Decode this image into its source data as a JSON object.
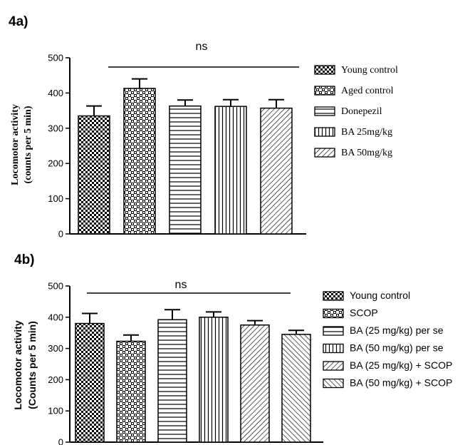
{
  "chart_data": [
    {
      "panel_label": "4a)",
      "type": "bar",
      "categories": [
        "Young control",
        "Aged control",
        "Donepezil",
        "BA 25mg/kg",
        "BA 50mg/kg"
      ],
      "values": [
        335,
        413,
        363,
        362,
        357
      ],
      "errors": [
        28,
        27,
        17,
        19,
        24
      ],
      "patterns": [
        "checker-small",
        "checker-large",
        "horizontal",
        "vertical",
        "diagonal-up"
      ],
      "ylabel_line1": "Locomotor activity",
      "ylabel_line2": "(counts per 5 min)",
      "ylim": [
        0,
        500
      ],
      "yticks": [
        "0",
        "100",
        "200",
        "300",
        "400",
        "500"
      ],
      "significance": "ns",
      "legend": [
        "Young control",
        "Aged control",
        "Donepezil",
        "BA 25mg/kg",
        "BA 50mg/kg"
      ],
      "legend_position": "right",
      "grid": false
    },
    {
      "panel_label": "4b)",
      "type": "bar",
      "categories": [
        "Young control",
        "SCOP",
        "BA (25 mg/kg) per se",
        "BA (50 mg/kg) per se",
        "BA (25 mg/kg) + SCOP",
        "BA (50 mg/kg) + SCOP"
      ],
      "values": [
        380,
        323,
        392,
        400,
        375,
        345
      ],
      "errors": [
        32,
        20,
        32,
        17,
        14,
        13
      ],
      "patterns": [
        "checker-small",
        "checker-large",
        "horizontal",
        "vertical",
        "diagonal-up",
        "diagonal-down"
      ],
      "ylabel_line1": "Locomotor activity",
      "ylabel_line2": "(Counts per 5 min)",
      "ylim": [
        0,
        500
      ],
      "yticks": [
        "0",
        "100",
        "200",
        "300",
        "400",
        "500"
      ],
      "significance": "ns",
      "legend": [
        "Young control",
        "SCOP",
        "BA (25 mg/kg) per se",
        "BA (50 mg/kg) per se",
        "BA (25 mg/kg) + SCOP",
        "BA (50 mg/kg) + SCOP"
      ],
      "legend_position": "right",
      "grid": false
    }
  ]
}
